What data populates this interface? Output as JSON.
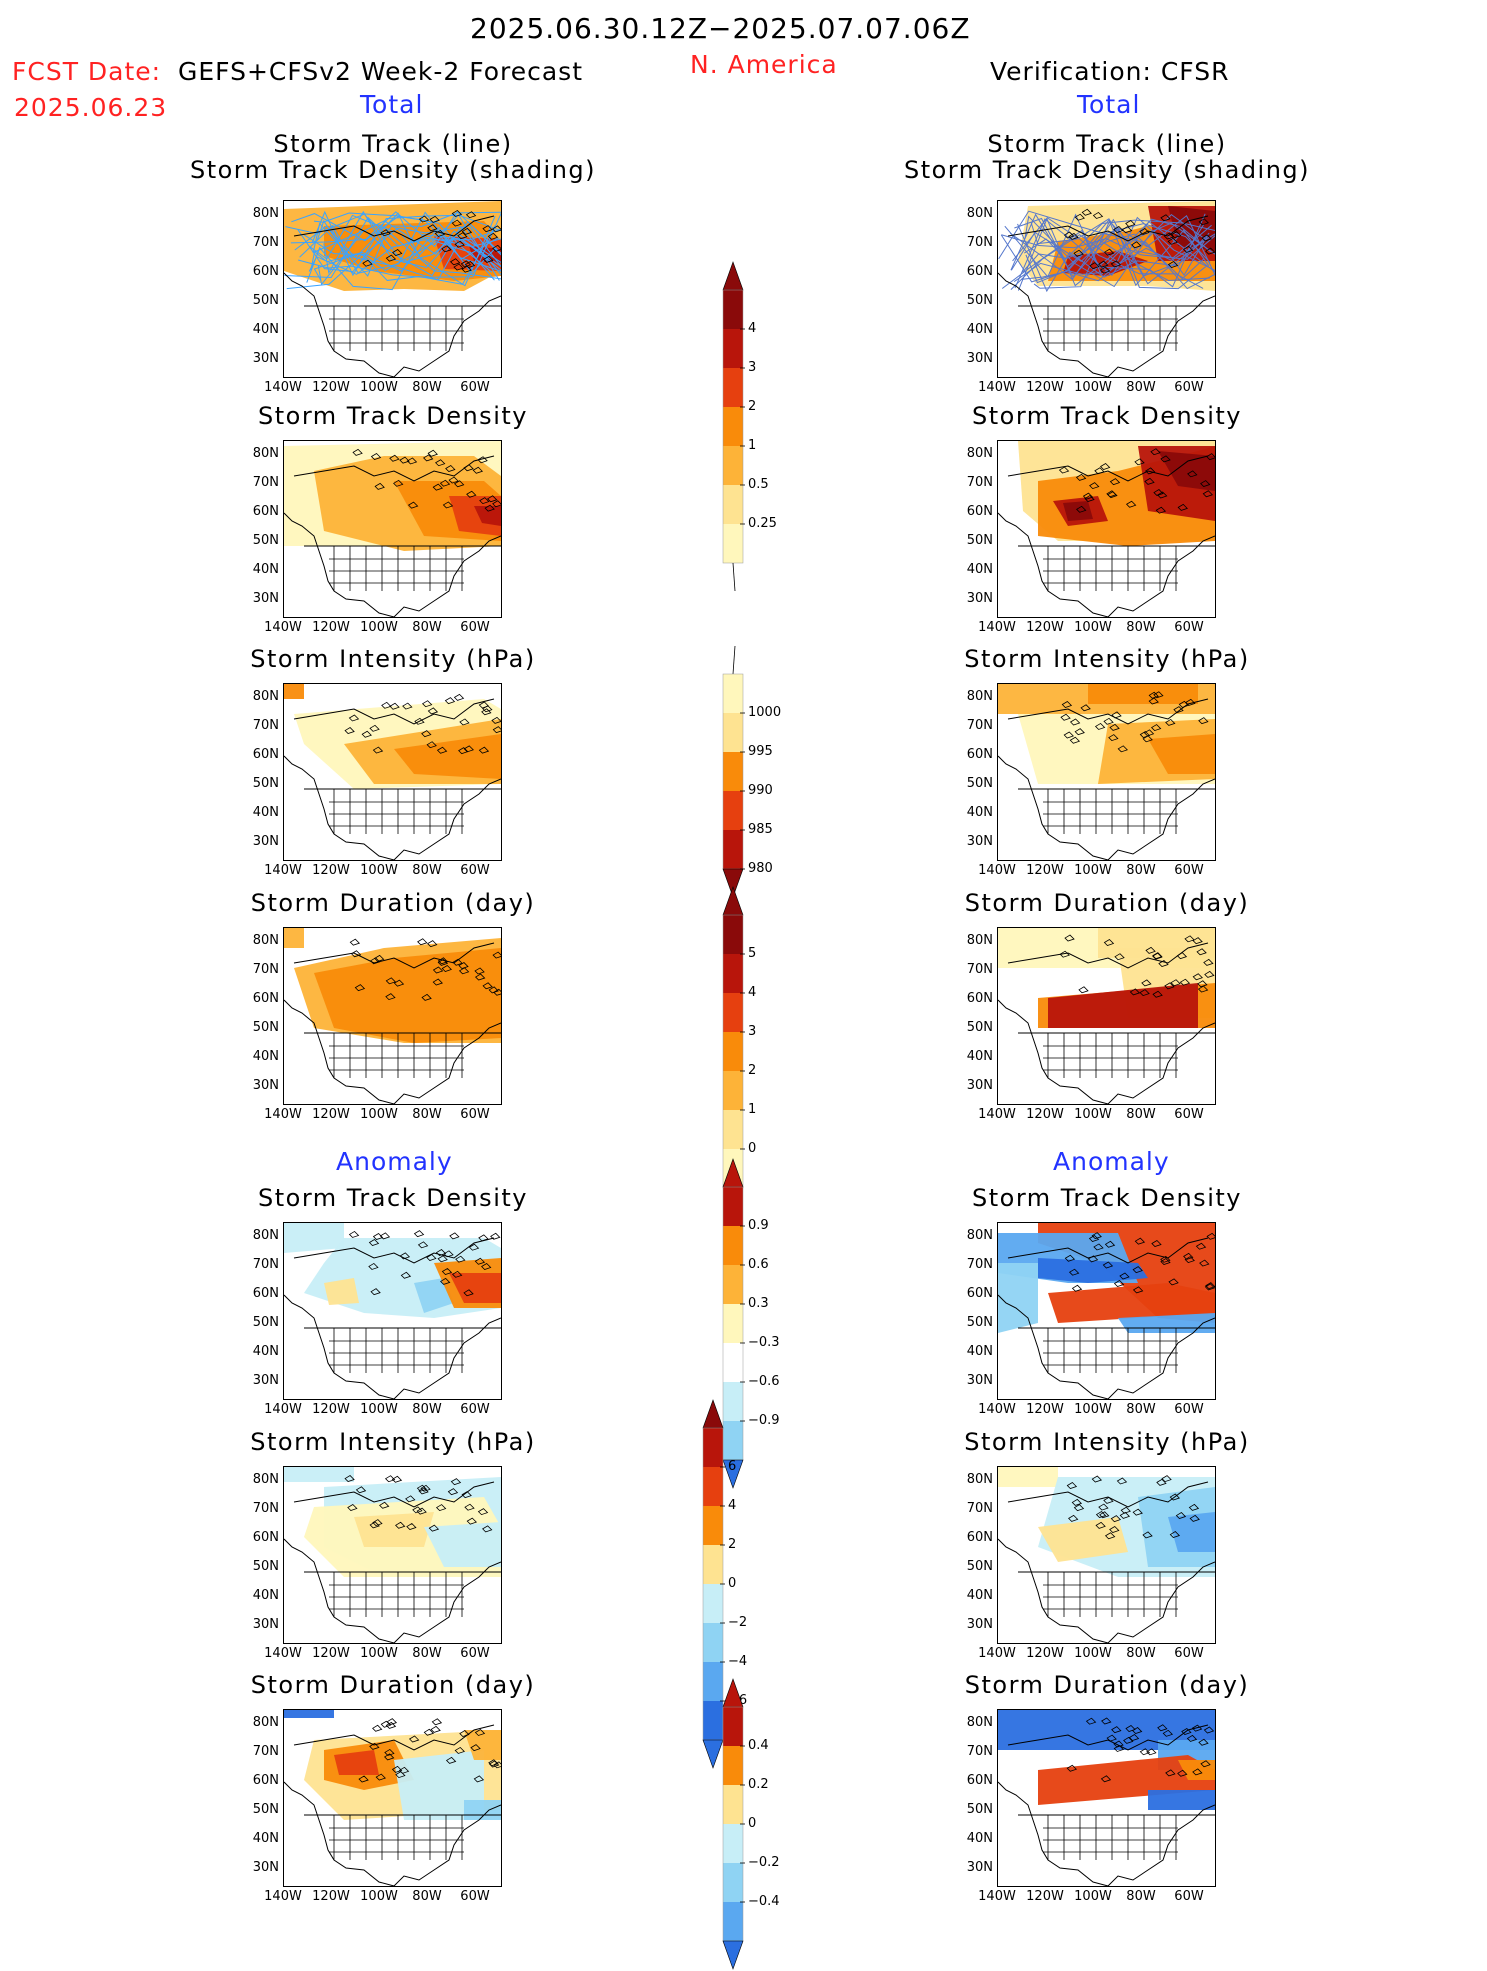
{
  "header": {
    "period": "2025.06.30.12Z−2025.07.07.06Z",
    "fcst_label": "FCST Date:",
    "fcst_model": "GEFS+CFSv2 Week-2 Forecast",
    "fcst_date": "2025.06.23",
    "region": "N. America",
    "verification": "Verification: CFSR"
  },
  "sections": {
    "total": "Total",
    "anomaly": "Anomaly"
  },
  "titles": {
    "track_line": "Storm Track (line)",
    "track_shading": "Storm Track Density (shading)",
    "density": "Storm Track Density",
    "intensity": "Storm Intensity (hPa)",
    "duration": "Storm Duration (day)"
  },
  "axes": {
    "lat": [
      "80N",
      "70N",
      "60N",
      "50N",
      "40N",
      "30N"
    ],
    "lon": [
      "140W",
      "120W",
      "100W",
      "80W",
      "60W"
    ]
  },
  "colorbars": {
    "density_total": [
      "4",
      "3",
      "2",
      "1",
      "0.5",
      "0.25"
    ],
    "intensity_total": [
      "1000",
      "995",
      "990",
      "985",
      "980"
    ],
    "duration_total": [
      "5",
      "4",
      "3",
      "2",
      "1",
      "0"
    ],
    "density_anom": [
      "0.9",
      "0.6",
      "0.3",
      "−0.3",
      "−0.6",
      "−0.9"
    ],
    "intensity_anom": [
      "6",
      "4",
      "2",
      "0",
      "−2",
      "−4",
      "−6"
    ],
    "duration_anom": [
      "0.4",
      "0.2",
      "0",
      "−0.2",
      "−0.4"
    ]
  },
  "colors": {
    "warm": [
      "#fff7bc",
      "#fee391",
      "#fdb338",
      "#f98b0a",
      "#e6400f",
      "#b8150b",
      "#8a0a0a"
    ],
    "cool": [
      "#c7eef7",
      "#8fd3f3",
      "#5aa8f0",
      "#2b6fe0",
      "#0b3fb8"
    ],
    "track_line": "#3aa3ff",
    "track_line_obs": "#5577cc"
  }
}
